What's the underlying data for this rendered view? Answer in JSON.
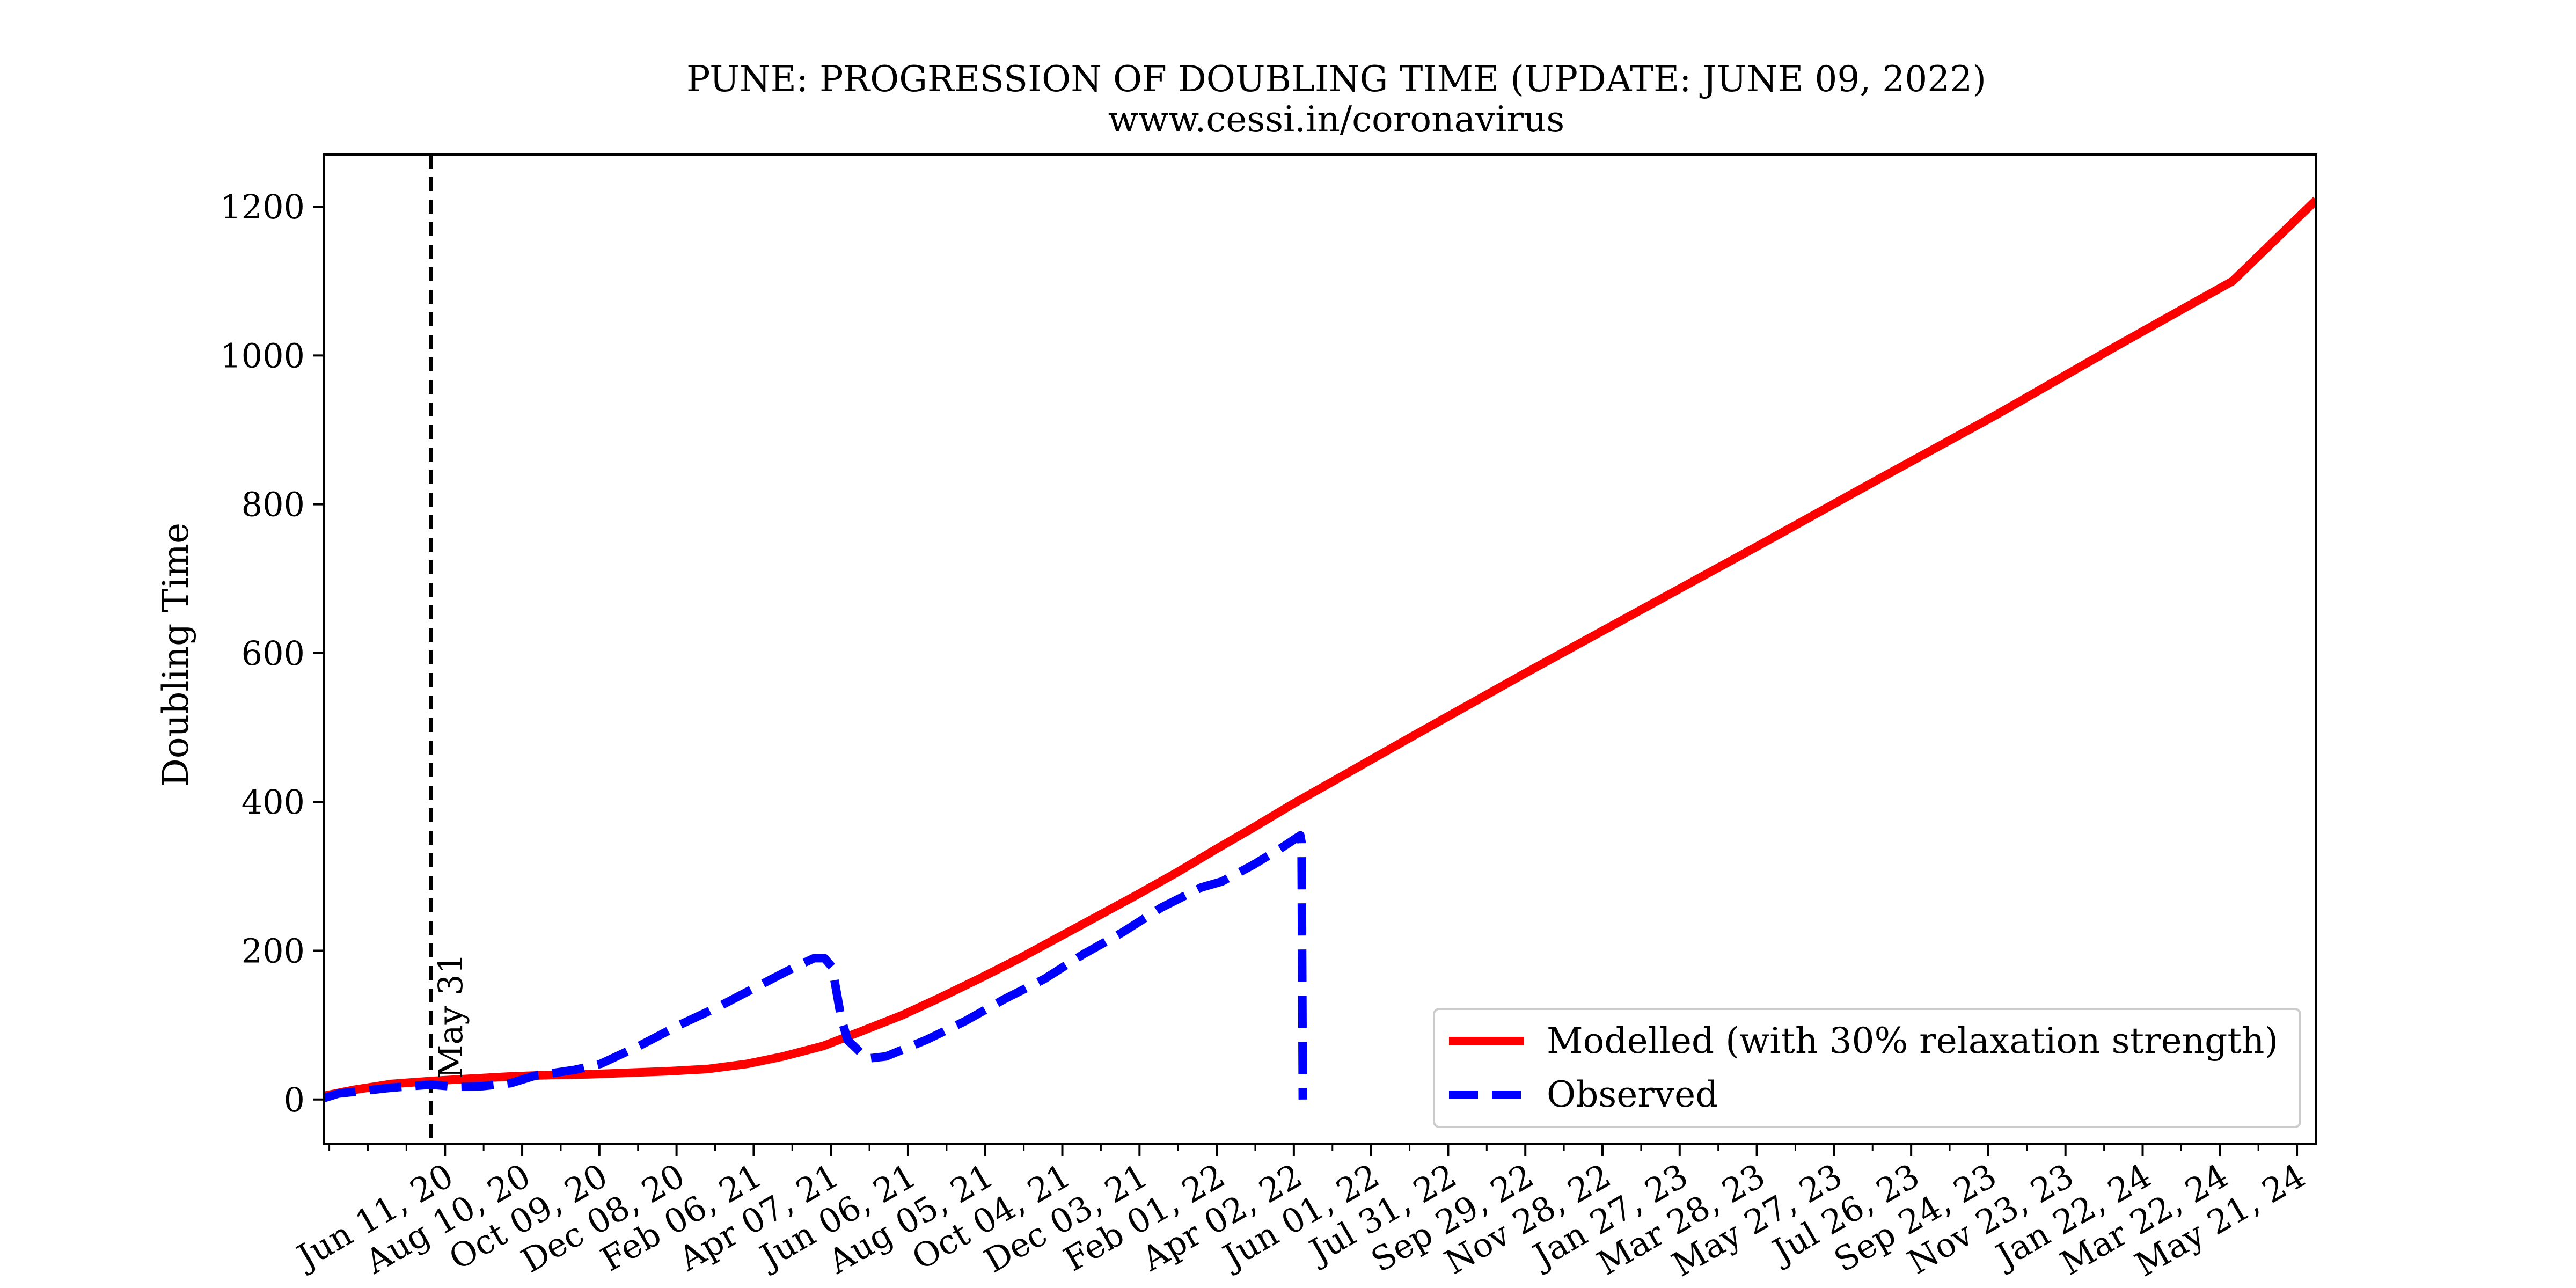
{
  "chart_data": {
    "type": "line",
    "title": "PUNE: PROGRESSION OF DOUBLING TIME (UPDATE: JUNE 09, 2022)",
    "subtitle": "www.cessi.in/coronavirus",
    "xlabel": "",
    "ylabel": "Doubling Time",
    "xlim": [
      "2020-03-09",
      "2024-06-05"
    ],
    "ylim": [
      -60,
      1270
    ],
    "y_ticks": [
      0,
      200,
      400,
      600,
      800,
      1000,
      1200
    ],
    "x_ticks": [
      {
        "date": "2020-06-11",
        "label": "Jun 11, 20"
      },
      {
        "date": "2020-08-10",
        "label": "Aug 10, 20"
      },
      {
        "date": "2020-10-09",
        "label": "Oct 09, 20"
      },
      {
        "date": "2020-12-08",
        "label": "Dec 08, 20"
      },
      {
        "date": "2021-02-06",
        "label": "Feb 06, 21"
      },
      {
        "date": "2021-04-07",
        "label": "Apr 07, 21"
      },
      {
        "date": "2021-06-06",
        "label": "Jun 06, 21"
      },
      {
        "date": "2021-08-05",
        "label": "Aug 05, 21"
      },
      {
        "date": "2021-10-04",
        "label": "Oct 04, 21"
      },
      {
        "date": "2021-12-03",
        "label": "Dec 03, 21"
      },
      {
        "date": "2022-02-01",
        "label": "Feb 01, 22"
      },
      {
        "date": "2022-04-02",
        "label": "Apr 02, 22"
      },
      {
        "date": "2022-06-01",
        "label": "Jun 01, 22"
      },
      {
        "date": "2022-07-31",
        "label": "Jul 31, 22"
      },
      {
        "date": "2022-09-29",
        "label": "Sep 29, 22"
      },
      {
        "date": "2022-11-28",
        "label": "Nov 28, 22"
      },
      {
        "date": "2023-01-27",
        "label": "Jan 27, 23"
      },
      {
        "date": "2023-03-28",
        "label": "Mar 28, 23"
      },
      {
        "date": "2023-05-27",
        "label": "May 27, 23"
      },
      {
        "date": "2023-07-26",
        "label": "Jul 26, 23"
      },
      {
        "date": "2023-09-24",
        "label": "Sep 24, 23"
      },
      {
        "date": "2023-11-23",
        "label": "Nov 23, 23"
      },
      {
        "date": "2024-01-22",
        "label": "Jan 22, 24"
      },
      {
        "date": "2024-03-22",
        "label": "Mar 22, 24"
      },
      {
        "date": "2024-05-21",
        "label": "May 21, 24"
      }
    ],
    "annotations": [
      {
        "type": "vline",
        "date": "2020-05-31",
        "label": "May 31",
        "style": "dashed",
        "color": "#000000"
      }
    ],
    "legend": {
      "position": "bottom-right"
    },
    "grid": false,
    "series": [
      {
        "name": "Modelled (with 30% relaxation strength)",
        "color": "#ff0000",
        "style": "solid",
        "points": [
          [
            "2020-03-09",
            5
          ],
          [
            "2020-04-01",
            13
          ],
          [
            "2020-05-01",
            21
          ],
          [
            "2020-06-01",
            25
          ],
          [
            "2020-07-01",
            28
          ],
          [
            "2020-08-01",
            31
          ],
          [
            "2020-09-01",
            33
          ],
          [
            "2020-10-01",
            34
          ],
          [
            "2020-11-01",
            36
          ],
          [
            "2020-12-01",
            38
          ],
          [
            "2021-01-01",
            41
          ],
          [
            "2021-02-01",
            48
          ],
          [
            "2021-03-01",
            58
          ],
          [
            "2021-04-01",
            72
          ],
          [
            "2021-05-01",
            92
          ],
          [
            "2021-06-01",
            113
          ],
          [
            "2021-07-01",
            137
          ],
          [
            "2021-08-01",
            163
          ],
          [
            "2021-09-01",
            190
          ],
          [
            "2021-10-01",
            218
          ],
          [
            "2021-11-01",
            247
          ],
          [
            "2021-12-01",
            275
          ],
          [
            "2022-01-01",
            305
          ],
          [
            "2022-02-01",
            337
          ],
          [
            "2022-03-01",
            365
          ],
          [
            "2022-04-01",
            397
          ],
          [
            "2022-07-01",
            486
          ],
          [
            "2022-10-01",
            575
          ],
          [
            "2023-01-01",
            662
          ],
          [
            "2023-04-01",
            747
          ],
          [
            "2023-07-01",
            834
          ],
          [
            "2023-10-01",
            921
          ],
          [
            "2024-01-01",
            1012
          ],
          [
            "2024-04-01",
            1100
          ],
          [
            "2024-06-05",
            1209
          ]
        ]
      },
      {
        "name": "Observed",
        "color": "#0000ff",
        "style": "dashed",
        "points": [
          [
            "2020-03-09",
            2
          ],
          [
            "2020-03-20",
            8
          ],
          [
            "2020-04-10",
            12
          ],
          [
            "2020-05-01",
            16
          ],
          [
            "2020-05-31",
            20
          ],
          [
            "2020-06-20",
            17
          ],
          [
            "2020-07-10",
            18
          ],
          [
            "2020-08-01",
            22
          ],
          [
            "2020-08-20",
            32
          ],
          [
            "2020-09-20",
            40
          ],
          [
            "2020-10-10",
            48
          ],
          [
            "2020-11-10",
            73
          ],
          [
            "2020-12-10",
            100
          ],
          [
            "2021-01-10",
            125
          ],
          [
            "2021-02-10",
            153
          ],
          [
            "2021-03-10",
            178
          ],
          [
            "2021-03-25",
            190
          ],
          [
            "2021-04-02",
            190
          ],
          [
            "2021-04-08",
            178
          ],
          [
            "2021-04-15",
            110
          ],
          [
            "2021-04-20",
            80
          ],
          [
            "2021-05-05",
            55
          ],
          [
            "2021-05-20",
            58
          ],
          [
            "2021-06-20",
            80
          ],
          [
            "2021-07-20",
            105
          ],
          [
            "2021-08-20",
            135
          ],
          [
            "2021-09-20",
            162
          ],
          [
            "2021-10-20",
            195
          ],
          [
            "2021-11-20",
            225
          ],
          [
            "2021-12-20",
            258
          ],
          [
            "2022-01-20",
            285
          ],
          [
            "2022-02-05",
            293
          ],
          [
            "2022-03-01",
            315
          ],
          [
            "2022-03-25",
            340
          ],
          [
            "2022-04-07",
            355
          ],
          [
            "2022-04-08",
            345
          ],
          [
            "2022-04-09",
            0
          ]
        ]
      }
    ]
  }
}
